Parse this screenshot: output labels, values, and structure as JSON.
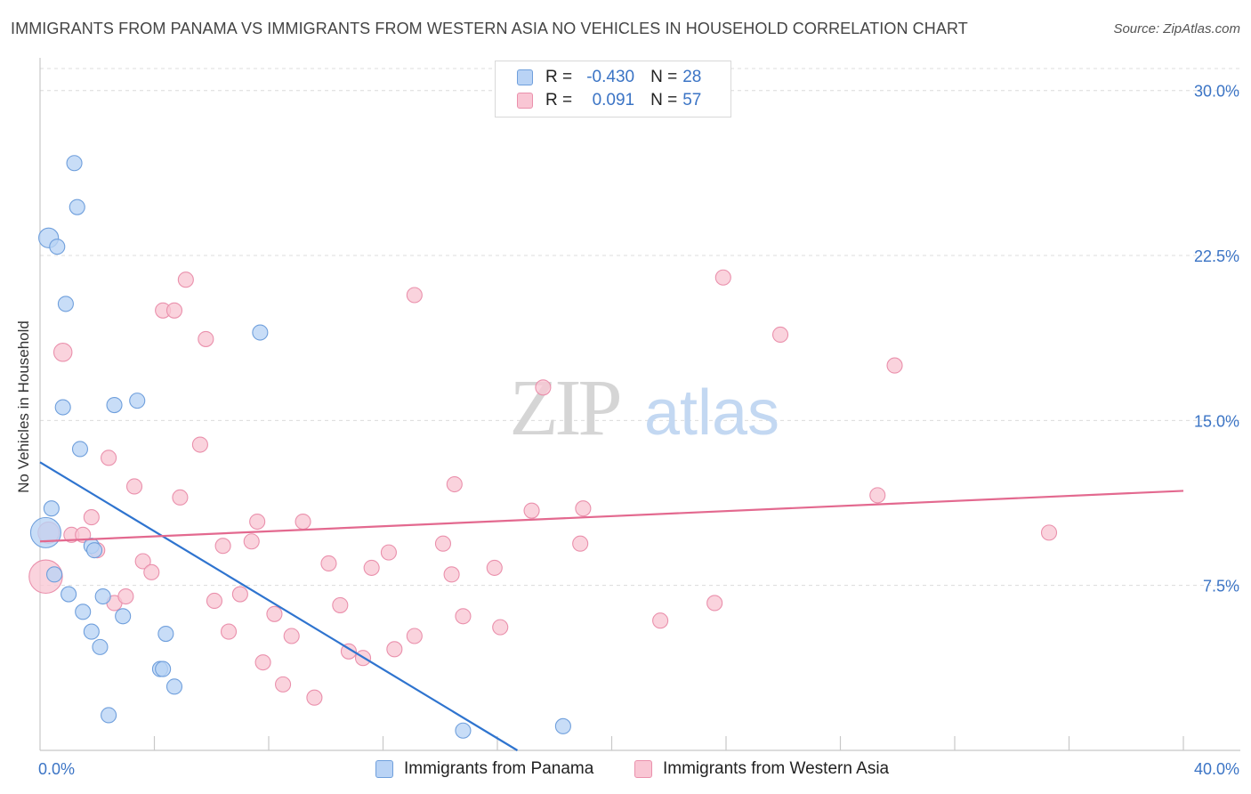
{
  "title": "IMMIGRANTS FROM PANAMA VS IMMIGRANTS FROM WESTERN ASIA NO VEHICLES IN HOUSEHOLD CORRELATION CHART",
  "source": "Source: ZipAtlas.com",
  "watermark": {
    "zip": "ZIP",
    "atlas": "atlas"
  },
  "legend": {
    "panama": {
      "r_label": "R =",
      "r_value": "-0.430",
      "n_label": "N =",
      "n_value": "28"
    },
    "wasia": {
      "r_label": "R =",
      "r_value": "0.091",
      "n_label": "N =",
      "n_value": "57"
    }
  },
  "colors": {
    "panama_fill": "#b9d3f5",
    "panama_stroke": "#6f9fdc",
    "panama_line": "#2f74cf",
    "wasia_fill": "#f9c6d4",
    "wasia_stroke": "#ea90ac",
    "wasia_line": "#e3698f",
    "tick_label": "#3b74c5",
    "grid": "#dcdcdc"
  },
  "chart_data": {
    "type": "scatter",
    "title": "IMMIGRANTS FROM PANAMA VS IMMIGRANTS FROM WESTERN ASIA NO VEHICLES IN HOUSEHOLD CORRELATION CHART",
    "xlabel": "",
    "ylabel": "No Vehicles in Household",
    "xlim": [
      0,
      40
    ],
    "ylim": [
      0,
      31
    ],
    "x_tick_labels": [
      "0.0%",
      "40.0%"
    ],
    "y_ticks": [
      7.5,
      15.0,
      22.5,
      30.0
    ],
    "y_tick_labels": [
      "7.5%",
      "15.0%",
      "22.5%",
      "30.0%"
    ],
    "grid": true,
    "legend_position": "top-center",
    "series": [
      {
        "name": "Immigrants from Panama",
        "points": [
          [
            0.2,
            9.9,
            2
          ],
          [
            0.3,
            23.3,
            1.3
          ],
          [
            0.4,
            11.0,
            1
          ],
          [
            0.5,
            8.0,
            1
          ],
          [
            0.6,
            22.9,
            1
          ],
          [
            0.8,
            15.6,
            1
          ],
          [
            0.9,
            20.3,
            1
          ],
          [
            1.0,
            7.1,
            1
          ],
          [
            1.2,
            26.7,
            1
          ],
          [
            1.3,
            24.7,
            1
          ],
          [
            1.4,
            13.7,
            1
          ],
          [
            1.5,
            6.3,
            1
          ],
          [
            1.8,
            5.4,
            1
          ],
          [
            1.8,
            9.3,
            1
          ],
          [
            1.9,
            9.1,
            1
          ],
          [
            2.1,
            4.7,
            1
          ],
          [
            2.2,
            7.0,
            1
          ],
          [
            2.4,
            1.6,
            1
          ],
          [
            2.6,
            15.7,
            1
          ],
          [
            2.9,
            6.1,
            1
          ],
          [
            3.4,
            15.9,
            1
          ],
          [
            4.2,
            3.7,
            1
          ],
          [
            4.3,
            3.7,
            1
          ],
          [
            4.4,
            5.3,
            1
          ],
          [
            4.7,
            2.9,
            1
          ],
          [
            7.7,
            19.0,
            1
          ],
          [
            14.8,
            0.9,
            1
          ],
          [
            18.3,
            1.1,
            1
          ]
        ]
      },
      {
        "name": "Immigrants from Western Asia",
        "points": [
          [
            0.2,
            7.9,
            2.2
          ],
          [
            0.3,
            9.9,
            1.4
          ],
          [
            0.8,
            18.1,
            1.2
          ],
          [
            1.1,
            9.8,
            1
          ],
          [
            1.5,
            9.8,
            1
          ],
          [
            1.8,
            10.6,
            1
          ],
          [
            2.0,
            9.1,
            1
          ],
          [
            2.4,
            13.3,
            1
          ],
          [
            2.6,
            6.7,
            1
          ],
          [
            3.0,
            7.0,
            1
          ],
          [
            3.3,
            12.0,
            1
          ],
          [
            3.6,
            8.6,
            1
          ],
          [
            3.9,
            8.1,
            1
          ],
          [
            4.3,
            20.0,
            1
          ],
          [
            4.7,
            20.0,
            1
          ],
          [
            4.9,
            11.5,
            1
          ],
          [
            5.1,
            21.4,
            1
          ],
          [
            5.6,
            13.9,
            1
          ],
          [
            5.8,
            18.7,
            1
          ],
          [
            6.1,
            6.8,
            1
          ],
          [
            6.4,
            9.3,
            1
          ],
          [
            6.6,
            5.4,
            1
          ],
          [
            7.0,
            7.1,
            1
          ],
          [
            7.4,
            9.5,
            1
          ],
          [
            7.6,
            10.4,
            1
          ],
          [
            7.8,
            4.0,
            1
          ],
          [
            8.2,
            6.2,
            1
          ],
          [
            8.5,
            3.0,
            1
          ],
          [
            8.8,
            5.2,
            1
          ],
          [
            9.2,
            10.4,
            1
          ],
          [
            9.6,
            2.4,
            1
          ],
          [
            10.1,
            8.5,
            1
          ],
          [
            10.5,
            6.6,
            1
          ],
          [
            10.8,
            4.5,
            1
          ],
          [
            11.3,
            4.2,
            1
          ],
          [
            11.6,
            8.3,
            1
          ],
          [
            12.2,
            9.0,
            1
          ],
          [
            12.4,
            4.6,
            1
          ],
          [
            13.1,
            5.2,
            1
          ],
          [
            13.1,
            20.7,
            1
          ],
          [
            14.1,
            9.4,
            1
          ],
          [
            14.4,
            8.0,
            1
          ],
          [
            14.5,
            12.1,
            1
          ],
          [
            14.8,
            6.1,
            1
          ],
          [
            15.9,
            8.3,
            1
          ],
          [
            16.1,
            5.6,
            1
          ],
          [
            17.2,
            10.9,
            1
          ],
          [
            17.6,
            16.5,
            1
          ],
          [
            18.9,
            9.4,
            1
          ],
          [
            19.0,
            11.0,
            1
          ],
          [
            21.7,
            5.9,
            1
          ],
          [
            23.6,
            6.7,
            1
          ],
          [
            23.9,
            21.5,
            1
          ],
          [
            25.9,
            18.9,
            1
          ],
          [
            29.3,
            11.6,
            1
          ],
          [
            29.9,
            17.5,
            1
          ],
          [
            35.3,
            9.9,
            1
          ]
        ]
      }
    ],
    "trendlines": [
      {
        "series": "Immigrants from Panama",
        "x": [
          0,
          16.7
        ],
        "y": [
          13.1,
          0
        ]
      },
      {
        "series": "Immigrants from Western Asia",
        "x": [
          0,
          40
        ],
        "y": [
          9.5,
          11.8
        ]
      }
    ]
  },
  "bottom_legend": {
    "panama_label": "Immigrants from Panama",
    "wasia_label": "Immigrants from Western Asia"
  }
}
